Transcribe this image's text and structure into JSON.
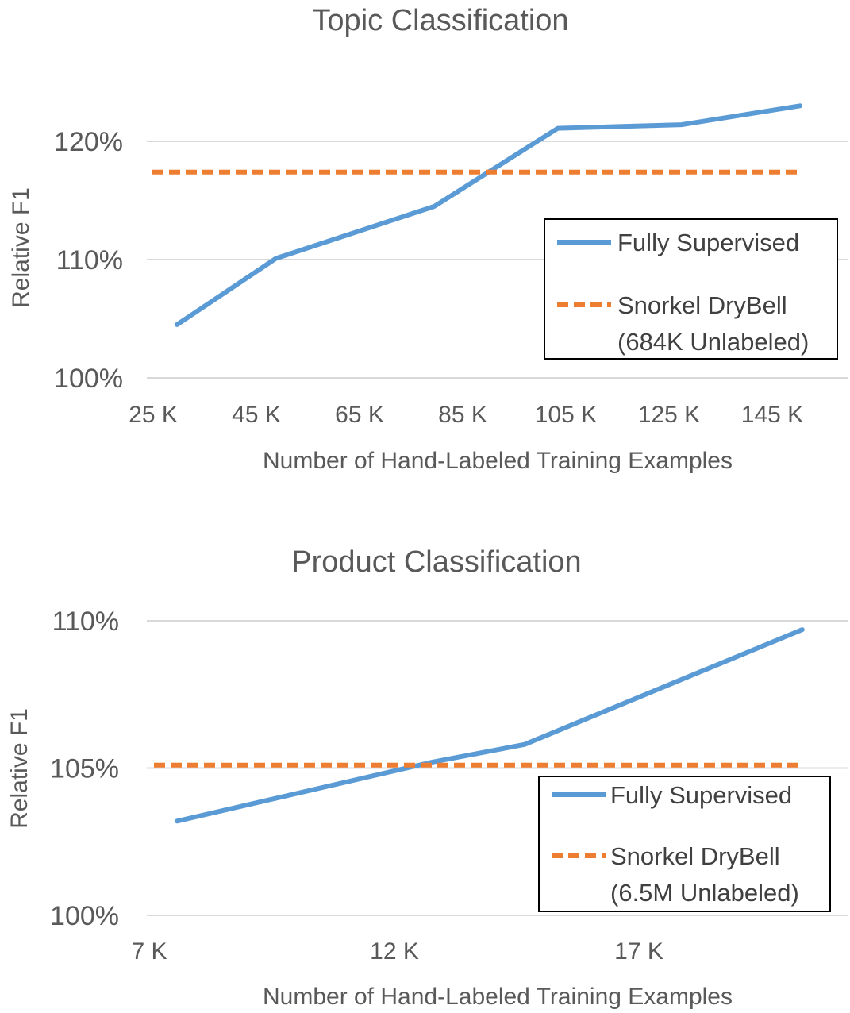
{
  "chart_data": [
    {
      "type": "line",
      "title": "Topic Classification",
      "xlabel": "Number of Hand-Labeled Training Examples",
      "ylabel": "Relative F1",
      "x_tick_labels": [
        "25 K",
        "45 K",
        "65 K",
        "85 K",
        "105 K",
        "125 K",
        "145 K"
      ],
      "y_tick_labels": [
        "100%",
        "110%",
        "120%"
      ],
      "ylim": [
        100,
        120
      ],
      "y_ticks": [
        100,
        110,
        120
      ],
      "x_range": [
        20,
        155
      ],
      "grid": true,
      "legend_position": "right",
      "series": [
        {
          "name": "Fully Supervised",
          "style": "solid",
          "color": "#5b9bd5",
          "x": [
            25,
            45,
            77,
            102,
            127,
            151
          ],
          "y": [
            104.5,
            110.1,
            114.5,
            121.1,
            121.4,
            123.0
          ]
        },
        {
          "name": "Snorkel DryBell",
          "name_line2": "(684K Unlabeled)",
          "style": "dashed",
          "color": "#ed7d31",
          "x": [
            20,
            151
          ],
          "y": [
            117.4,
            117.4
          ]
        }
      ]
    },
    {
      "type": "line",
      "title": "Product Classification",
      "xlabel": "Number of Hand-Labeled Training Examples",
      "ylabel": "Relative F1",
      "x_tick_labels": [
        "7 K",
        "12 K",
        "17 K"
      ],
      "y_tick_labels": [
        "100%",
        "105%",
        "110%"
      ],
      "ylim": [
        100,
        110
      ],
      "y_ticks": [
        100,
        105,
        110
      ],
      "x_range": [
        6.5,
        21
      ],
      "grid": true,
      "legend_position": "right",
      "series": [
        {
          "name": "Fully Supervised",
          "style": "solid",
          "color": "#5b9bd5",
          "x": [
            7,
            12.5,
            14.5,
            20.5
          ],
          "y": [
            103.2,
            105.2,
            105.8,
            109.7
          ]
        },
        {
          "name": "Snorkel DryBell",
          "name_line2": "(6.5M Unlabeled)",
          "style": "dashed",
          "color": "#ed7d31",
          "x": [
            6.5,
            20.5
          ],
          "y": [
            105.1,
            105.1
          ]
        }
      ]
    }
  ]
}
